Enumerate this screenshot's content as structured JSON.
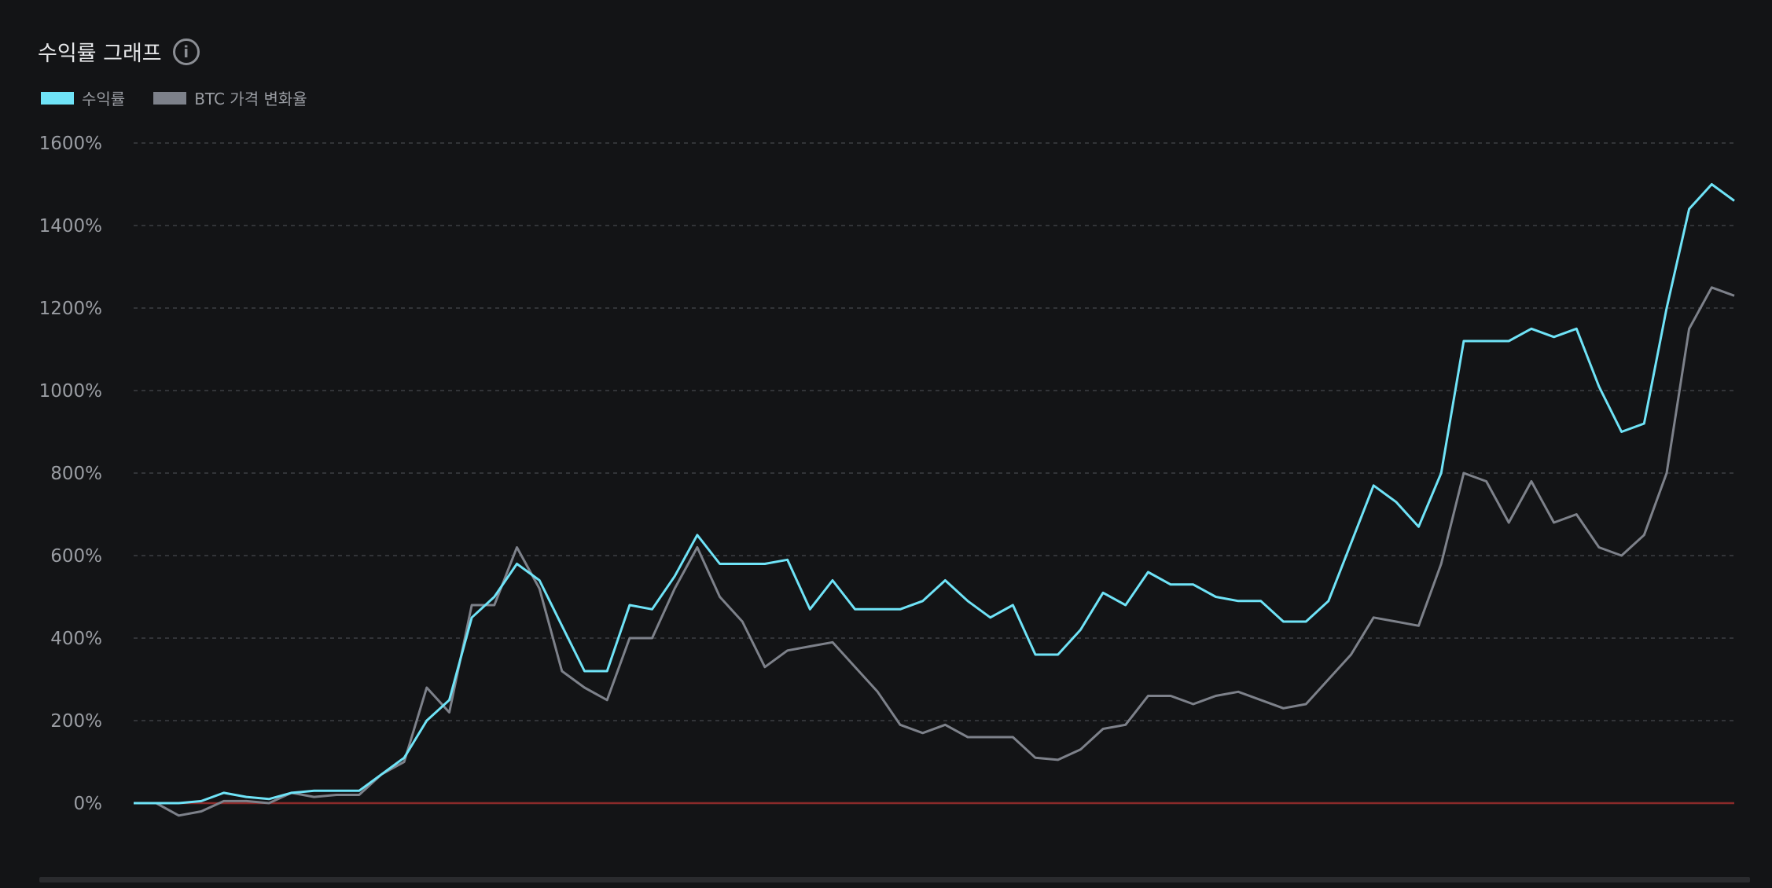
{
  "header": {
    "title": "수익률 그래프",
    "info_icon": "info-circle-icon"
  },
  "chart_data": {
    "type": "line",
    "title": "수익률 그래프",
    "xlabel": "",
    "ylabel": "",
    "ylim": [
      0,
      1600
    ],
    "y_ticks": [
      "0%",
      "200%",
      "400%",
      "600%",
      "800%",
      "1000%",
      "1200%",
      "1400%",
      "1600%"
    ],
    "y_tick_values": [
      0,
      200,
      400,
      600,
      800,
      1000,
      1200,
      1400,
      1600
    ],
    "grid": true,
    "legend_position": "top-left",
    "baseline": {
      "value": 0,
      "color": "#8b2a2a"
    },
    "series": [
      {
        "name": "수익률",
        "color": "#6fe3f7",
        "values": [
          0,
          0,
          0,
          5,
          25,
          15,
          10,
          25,
          30,
          30,
          30,
          70,
          110,
          200,
          250,
          450,
          500,
          580,
          540,
          430,
          320,
          320,
          480,
          470,
          550,
          650,
          580,
          580,
          580,
          590,
          470,
          540,
          470,
          470,
          470,
          490,
          540,
          490,
          450,
          480,
          360,
          360,
          420,
          510,
          480,
          560,
          530,
          530,
          500,
          490,
          490,
          440,
          440,
          490,
          630,
          770,
          730,
          670,
          800,
          1120,
          1120,
          1120,
          1150,
          1130,
          1150,
          1010,
          900,
          920,
          1200,
          1440,
          1500,
          1460
        ]
      },
      {
        "name": "BTC 가격 변화율",
        "color": "#7d818a",
        "values": [
          0,
          0,
          -30,
          -20,
          5,
          5,
          0,
          25,
          15,
          20,
          20,
          70,
          100,
          280,
          220,
          480,
          480,
          620,
          520,
          320,
          280,
          250,
          400,
          400,
          520,
          620,
          500,
          440,
          330,
          370,
          380,
          390,
          330,
          270,
          190,
          170,
          190,
          160,
          160,
          160,
          110,
          105,
          130,
          180,
          190,
          260,
          260,
          240,
          260,
          270,
          250,
          230,
          240,
          300,
          360,
          450,
          440,
          430,
          580,
          800,
          780,
          680,
          780,
          680,
          700,
          620,
          600,
          650,
          800,
          1150,
          1250,
          1230
        ]
      }
    ]
  }
}
